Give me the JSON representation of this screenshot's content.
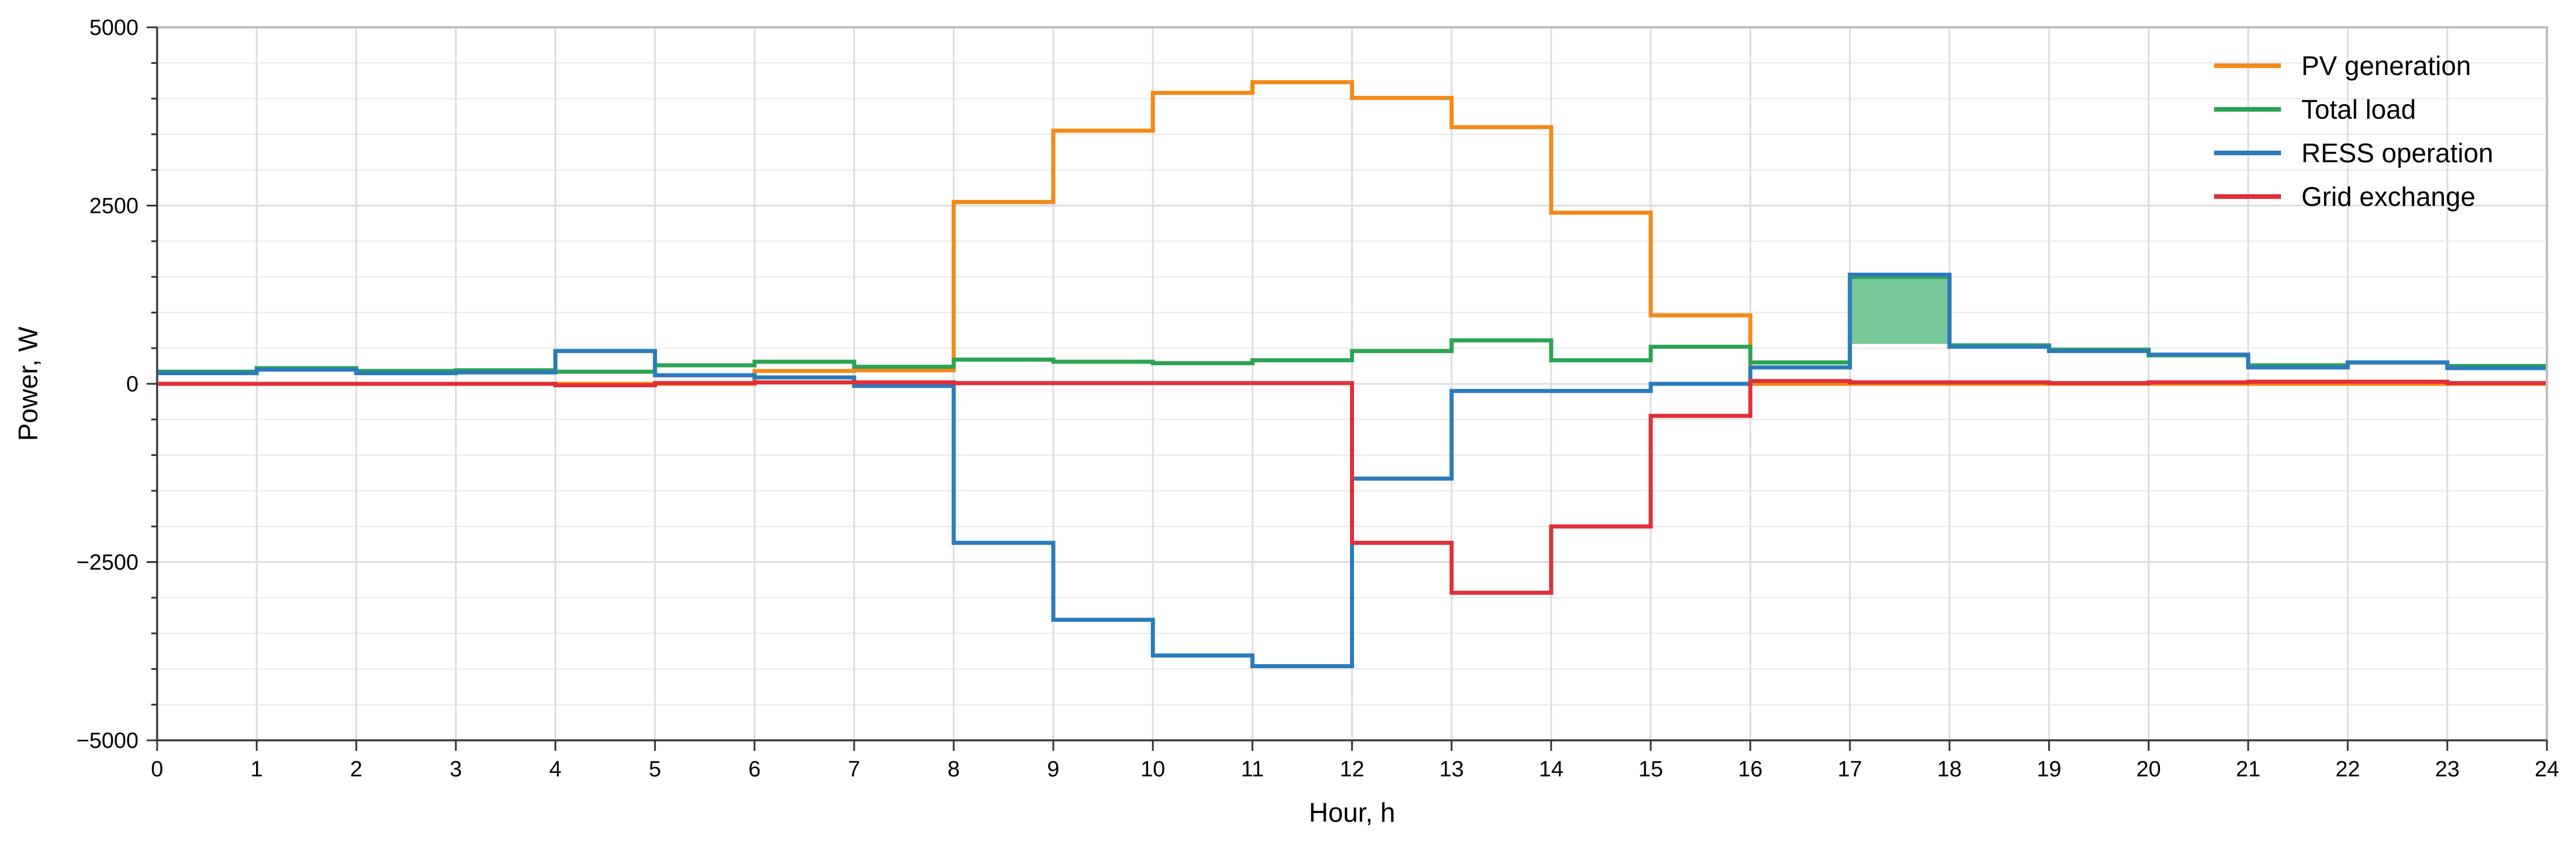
{
  "chart_data": {
    "type": "line",
    "step": "post",
    "xlabel": "Hour, h",
    "ylabel": "Power, W",
    "xlim": [
      0,
      24
    ],
    "ylim": [
      -5000,
      5000
    ],
    "xticks": [
      0,
      1,
      2,
      3,
      4,
      5,
      6,
      7,
      8,
      9,
      10,
      11,
      12,
      13,
      14,
      15,
      16,
      17,
      18,
      19,
      20,
      21,
      22,
      23,
      24
    ],
    "yticks": [
      5000,
      2500,
      0,
      -2500,
      -5000
    ],
    "ytick_labels": [
      "5000",
      "2500",
      "0",
      "−2500",
      "−5000"
    ],
    "grid": true,
    "legend_position": "top-right",
    "x": [
      0,
      1,
      2,
      3,
      4,
      5,
      6,
      7,
      8,
      9,
      10,
      11,
      12,
      13,
      14,
      15,
      16,
      17,
      18,
      19,
      20,
      21,
      22,
      23
    ],
    "series": [
      {
        "name": "PV generation",
        "color": "#f28a1b",
        "values": [
          0,
          0,
          0,
          0,
          0,
          0,
          180,
          190,
          2550,
          3550,
          4080,
          4230,
          4010,
          3600,
          2400,
          960,
          0,
          0,
          0,
          0,
          0,
          0,
          0,
          0
        ]
      },
      {
        "name": "Total load",
        "color": "#2ca452",
        "values": [
          170,
          220,
          180,
          190,
          170,
          260,
          310,
          240,
          340,
          310,
          290,
          330,
          460,
          610,
          330,
          520,
          300,
          1500,
          540,
          480,
          400,
          260,
          300,
          250
        ]
      },
      {
        "name": "RESS operation",
        "color": "#2b7bba",
        "values": [
          150,
          200,
          150,
          160,
          460,
          120,
          90,
          -30,
          -2230,
          -3310,
          -3810,
          -3960,
          -1330,
          -100,
          -100,
          0,
          230,
          1530,
          520,
          460,
          410,
          230,
          300,
          220
        ]
      },
      {
        "name": "Grid exchange",
        "color": "#e0303a",
        "values": [
          0,
          0,
          0,
          0,
          -20,
          10,
          20,
          20,
          10,
          10,
          10,
          10,
          -2230,
          -2930,
          -2000,
          -450,
          40,
          20,
          20,
          10,
          20,
          30,
          30,
          10
        ]
      }
    ],
    "highlight": {
      "x_start": 17,
      "x_end": 18,
      "y_low": 560,
      "y_high": 1500,
      "color": "#77c898"
    }
  }
}
